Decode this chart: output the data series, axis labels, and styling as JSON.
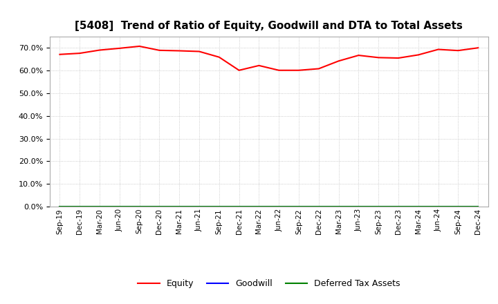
{
  "title": "[5408]  Trend of Ratio of Equity, Goodwill and DTA to Total Assets",
  "x_labels": [
    "Sep-19",
    "Dec-19",
    "Mar-20",
    "Jun-20",
    "Sep-20",
    "Dec-20",
    "Mar-21",
    "Jun-21",
    "Sep-21",
    "Dec-21",
    "Mar-22",
    "Jun-22",
    "Sep-22",
    "Dec-22",
    "Mar-23",
    "Jun-23",
    "Sep-23",
    "Dec-23",
    "Mar-24",
    "Jun-24",
    "Sep-24",
    "Dec-24"
  ],
  "equity": [
    0.671,
    0.676,
    0.69,
    0.698,
    0.707,
    0.689,
    0.687,
    0.684,
    0.659,
    0.601,
    0.622,
    0.601,
    0.601,
    0.608,
    0.642,
    0.667,
    0.657,
    0.655,
    0.669,
    0.693,
    0.688,
    0.7
  ],
  "goodwill": [
    0.0,
    0.0,
    0.0,
    0.0,
    0.0,
    0.0,
    0.0,
    0.0,
    0.0,
    0.0,
    0.0,
    0.0,
    0.0,
    0.0,
    0.0,
    0.0,
    0.0,
    0.0,
    0.0,
    0.0,
    0.0,
    0.0
  ],
  "dta": [
    0.0,
    0.0,
    0.0,
    0.0,
    0.0,
    0.0,
    0.0,
    0.0,
    0.0,
    0.0,
    0.0,
    0.0,
    0.0,
    0.0,
    0.0,
    0.0,
    0.0,
    0.0,
    0.0,
    0.0,
    0.0,
    0.0
  ],
  "equity_color": "#FF0000",
  "goodwill_color": "#0000FF",
  "dta_color": "#008000",
  "ylim": [
    0.0,
    0.75
  ],
  "yticks": [
    0.0,
    0.1,
    0.2,
    0.3,
    0.4,
    0.5,
    0.6,
    0.7
  ],
  "bg_color": "#FFFFFF",
  "plot_bg_color": "#FFFFFF",
  "grid_color": "#BBBBBB",
  "title_fontsize": 11,
  "legend_labels": [
    "Equity",
    "Goodwill",
    "Deferred Tax Assets"
  ]
}
